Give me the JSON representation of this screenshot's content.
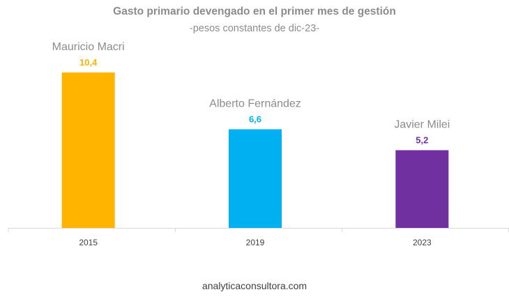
{
  "chart_data": {
    "type": "bar",
    "title": "Gasto primario devengado en el primer mes de gestión",
    "subtitle": "-pesos constantes de dic-23-",
    "categories": [
      "2015",
      "2019",
      "2023"
    ],
    "series_labels": [
      "Mauricio Macri",
      "Alberto Fernández",
      "Javier Milei"
    ],
    "values": [
      10.4,
      6.6,
      5.2
    ],
    "value_labels": [
      "10,4",
      "6,6",
      "5,2"
    ],
    "colors": [
      "#FFB400",
      "#00B0F0",
      "#7030A0"
    ],
    "ylim": [
      0,
      10.4
    ],
    "grid": false,
    "legend": "none"
  },
  "footer": {
    "source": "analyticaconsultora.com"
  }
}
